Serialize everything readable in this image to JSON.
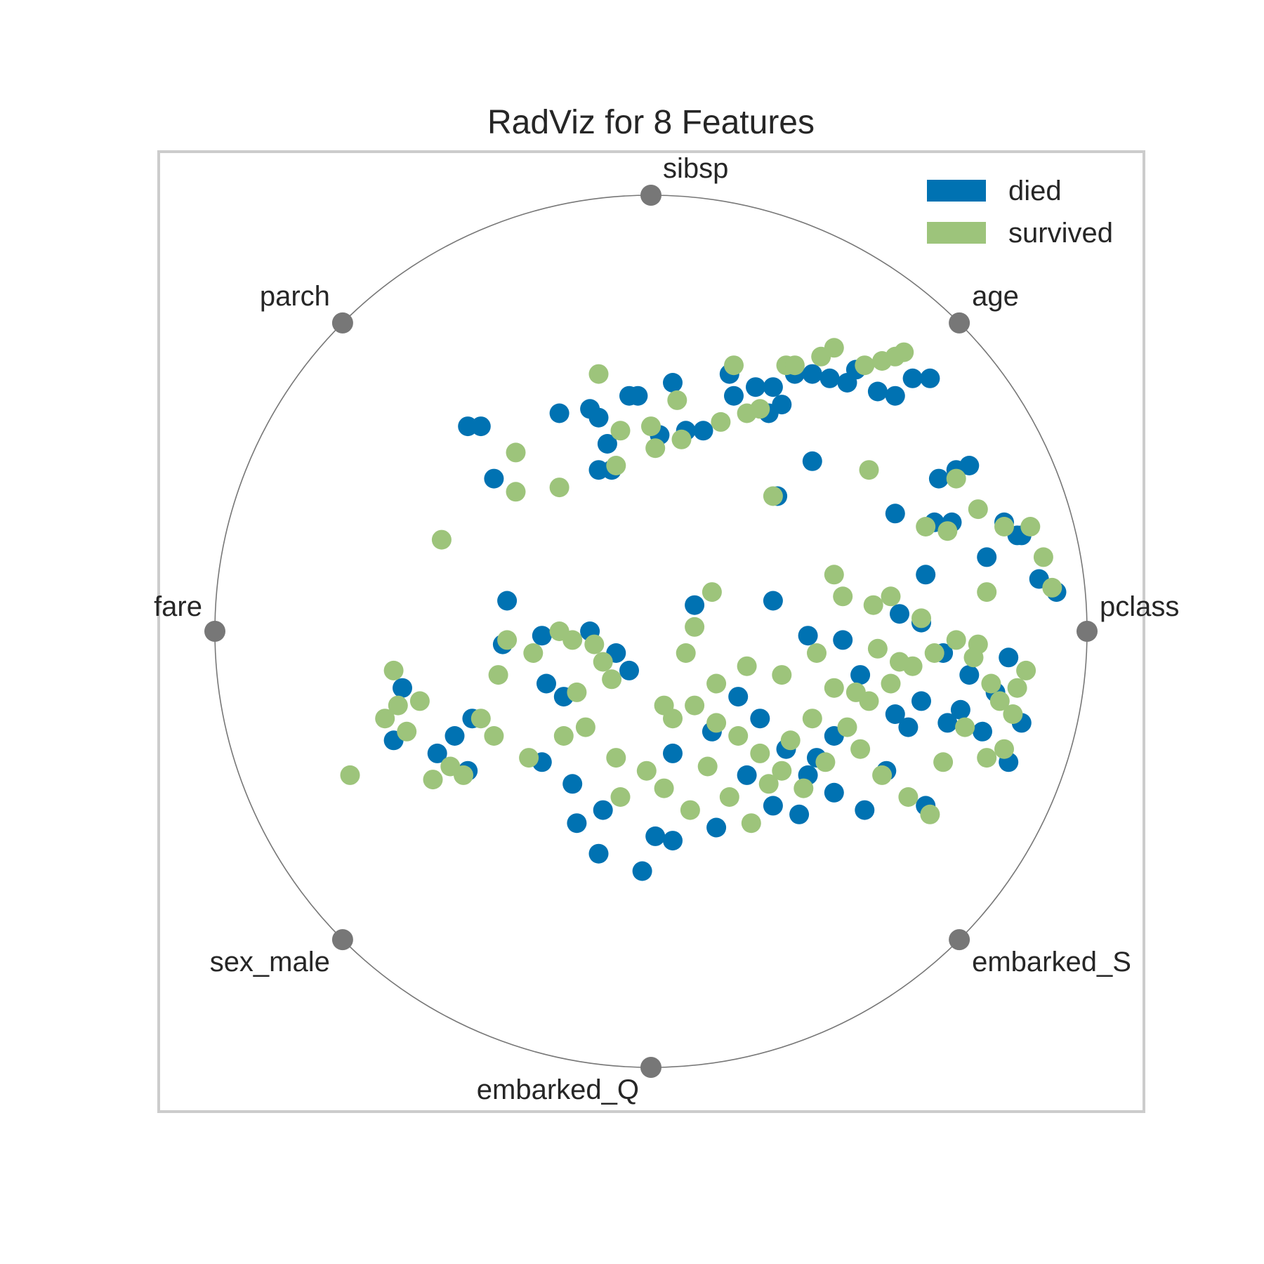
{
  "chart_data": {
    "type": "scatter",
    "title": "RadViz for 8 Features",
    "anchors": [
      "pclass",
      "age",
      "sibsp",
      "parch",
      "fare",
      "sex_male",
      "embarked_Q",
      "embarked_S"
    ],
    "legend": {
      "placement": "top-right",
      "entries": [
        "died",
        "survived"
      ]
    },
    "x_range": [
      -1,
      1
    ],
    "y_range": [
      -1,
      1
    ],
    "grid": false,
    "series": [
      {
        "name": "died",
        "color": "#0072B2",
        "points": [
          [
            -0.42,
            0.47
          ],
          [
            -0.39,
            0.47
          ],
          [
            -0.36,
            0.35
          ],
          [
            -0.21,
            0.5
          ],
          [
            -0.14,
            0.51
          ],
          [
            -0.12,
            0.49
          ],
          [
            -0.1,
            0.43
          ],
          [
            -0.12,
            0.37
          ],
          [
            -0.09,
            0.37
          ],
          [
            -0.05,
            0.54
          ],
          [
            -0.03,
            0.54
          ],
          [
            0.05,
            0.57
          ],
          [
            0.18,
            0.59
          ],
          [
            0.19,
            0.54
          ],
          [
            0.24,
            0.56
          ],
          [
            0.28,
            0.56
          ],
          [
            0.33,
            0.59
          ],
          [
            0.37,
            0.59
          ],
          [
            0.41,
            0.58
          ],
          [
            0.45,
            0.57
          ],
          [
            0.47,
            0.6
          ],
          [
            0.52,
            0.55
          ],
          [
            0.56,
            0.54
          ],
          [
            0.6,
            0.58
          ],
          [
            0.64,
            0.58
          ],
          [
            0.08,
            0.46
          ],
          [
            0.12,
            0.46
          ],
          [
            0.27,
            0.5
          ],
          [
            0.3,
            0.52
          ],
          [
            0.02,
            0.45
          ],
          [
            0.37,
            0.39
          ],
          [
            0.29,
            0.31
          ],
          [
            0.56,
            0.27
          ],
          [
            0.66,
            0.35
          ],
          [
            0.7,
            0.37
          ],
          [
            0.73,
            0.38
          ],
          [
            0.65,
            0.25
          ],
          [
            0.69,
            0.25
          ],
          [
            0.77,
            0.17
          ],
          [
            0.81,
            0.25
          ],
          [
            0.84,
            0.22
          ],
          [
            0.85,
            0.22
          ],
          [
            0.63,
            0.13
          ],
          [
            0.89,
            0.12
          ],
          [
            0.93,
            0.09
          ],
          [
            -0.33,
            0.07
          ],
          [
            -0.34,
            -0.03
          ],
          [
            -0.25,
            -0.01
          ],
          [
            -0.14,
            0.0
          ],
          [
            -0.08,
            -0.05
          ],
          [
            -0.05,
            -0.09
          ],
          [
            -0.2,
            -0.15
          ],
          [
            -0.24,
            -0.12
          ],
          [
            -0.41,
            -0.2
          ],
          [
            -0.45,
            -0.24
          ],
          [
            -0.49,
            -0.28
          ],
          [
            -0.57,
            -0.13
          ],
          [
            -0.59,
            -0.25
          ],
          [
            -0.42,
            -0.32
          ],
          [
            -0.25,
            -0.3
          ],
          [
            -0.18,
            -0.35
          ],
          [
            -0.11,
            -0.41
          ],
          [
            -0.17,
            -0.44
          ],
          [
            -0.12,
            -0.51
          ],
          [
            -0.02,
            -0.55
          ],
          [
            0.01,
            -0.47
          ],
          [
            0.05,
            -0.48
          ],
          [
            0.15,
            -0.45
          ],
          [
            0.28,
            -0.4
          ],
          [
            0.34,
            -0.42
          ],
          [
            0.38,
            -0.29
          ],
          [
            0.42,
            -0.24
          ],
          [
            0.54,
            -0.32
          ],
          [
            0.62,
            -0.16
          ],
          [
            0.67,
            -0.05
          ],
          [
            0.73,
            -0.1
          ],
          [
            0.79,
            -0.14
          ],
          [
            0.85,
            -0.21
          ],
          [
            0.82,
            -0.3
          ],
          [
            0.63,
            -0.4
          ],
          [
            0.49,
            -0.41
          ],
          [
            0.1,
            0.06
          ],
          [
            0.28,
            0.07
          ],
          [
            0.36,
            -0.01
          ],
          [
            0.44,
            -0.02
          ],
          [
            0.48,
            -0.1
          ],
          [
            0.57,
            0.04
          ],
          [
            0.62,
            0.02
          ],
          [
            0.2,
            -0.15
          ],
          [
            0.25,
            -0.2
          ],
          [
            0.05,
            -0.28
          ],
          [
            0.14,
            -0.23
          ],
          [
            0.22,
            -0.33
          ],
          [
            0.31,
            -0.27
          ],
          [
            0.36,
            -0.33
          ],
          [
            0.42,
            -0.37
          ],
          [
            0.56,
            -0.19
          ],
          [
            0.59,
            -0.22
          ],
          [
            0.68,
            -0.21
          ],
          [
            0.71,
            -0.18
          ],
          [
            0.76,
            -0.23
          ],
          [
            0.82,
            -0.06
          ]
        ]
      },
      {
        "name": "survived",
        "color": "#9DC47B",
        "points": [
          [
            -0.12,
            0.59
          ],
          [
            -0.07,
            0.46
          ],
          [
            0.0,
            0.47
          ],
          [
            0.06,
            0.53
          ],
          [
            0.19,
            0.61
          ],
          [
            0.31,
            0.61
          ],
          [
            0.33,
            0.61
          ],
          [
            0.39,
            0.63
          ],
          [
            0.42,
            0.65
          ],
          [
            0.49,
            0.61
          ],
          [
            0.53,
            0.62
          ],
          [
            0.56,
            0.63
          ],
          [
            0.58,
            0.64
          ],
          [
            -0.31,
            0.41
          ],
          [
            -0.31,
            0.32
          ],
          [
            -0.21,
            0.33
          ],
          [
            -0.08,
            0.38
          ],
          [
            0.01,
            0.42
          ],
          [
            0.07,
            0.44
          ],
          [
            0.16,
            0.48
          ],
          [
            0.22,
            0.5
          ],
          [
            0.25,
            0.51
          ],
          [
            -0.48,
            0.21
          ],
          [
            0.28,
            0.31
          ],
          [
            0.5,
            0.37
          ],
          [
            0.7,
            0.35
          ],
          [
            0.75,
            0.28
          ],
          [
            0.63,
            0.24
          ],
          [
            0.68,
            0.23
          ],
          [
            0.81,
            0.24
          ],
          [
            0.87,
            0.24
          ],
          [
            0.9,
            0.17
          ],
          [
            0.92,
            0.1
          ],
          [
            0.77,
            0.09
          ],
          [
            0.14,
            0.09
          ],
          [
            0.1,
            0.01
          ],
          [
            0.42,
            0.13
          ],
          [
            0.44,
            0.08
          ],
          [
            0.55,
            0.08
          ],
          [
            0.51,
            0.06
          ],
          [
            -0.59,
            -0.09
          ],
          [
            -0.58,
            -0.17
          ],
          [
            -0.56,
            -0.23
          ],
          [
            -0.53,
            -0.16
          ],
          [
            -0.46,
            -0.31
          ],
          [
            -0.5,
            -0.34
          ],
          [
            -0.43,
            -0.33
          ],
          [
            -0.39,
            -0.2
          ],
          [
            -0.36,
            -0.24
          ],
          [
            -0.28,
            -0.29
          ],
          [
            -0.2,
            -0.24
          ],
          [
            -0.15,
            -0.22
          ],
          [
            -0.35,
            -0.1
          ],
          [
            -0.27,
            -0.05
          ],
          [
            -0.21,
            0.0
          ],
          [
            -0.18,
            -0.02
          ],
          [
            -0.13,
            -0.03
          ],
          [
            -0.11,
            -0.07
          ],
          [
            -0.09,
            -0.11
          ],
          [
            -0.17,
            -0.14
          ],
          [
            -0.33,
            -0.02
          ],
          [
            -0.69,
            -0.33
          ],
          [
            -0.61,
            -0.2
          ],
          [
            -0.08,
            -0.29
          ],
          [
            -0.07,
            -0.38
          ],
          [
            0.05,
            -0.2
          ],
          [
            0.1,
            -0.17
          ],
          [
            0.15,
            -0.21
          ],
          [
            0.2,
            -0.24
          ],
          [
            0.25,
            -0.28
          ],
          [
            0.3,
            -0.32
          ],
          [
            0.35,
            -0.36
          ],
          [
            0.4,
            -0.3
          ],
          [
            0.45,
            -0.22
          ],
          [
            0.5,
            -0.16
          ],
          [
            0.55,
            -0.12
          ],
          [
            0.6,
            -0.08
          ],
          [
            0.65,
            -0.05
          ],
          [
            0.7,
            -0.02
          ],
          [
            0.74,
            -0.06
          ],
          [
            0.78,
            -0.12
          ],
          [
            0.8,
            -0.16
          ],
          [
            0.83,
            -0.19
          ],
          [
            0.86,
            -0.09
          ],
          [
            0.75,
            -0.03
          ],
          [
            0.62,
            0.03
          ],
          [
            0.57,
            -0.07
          ],
          [
            0.52,
            -0.04
          ],
          [
            0.47,
            -0.14
          ],
          [
            0.38,
            -0.05
          ],
          [
            0.3,
            -0.1
          ],
          [
            0.22,
            -0.08
          ],
          [
            0.15,
            -0.12
          ],
          [
            0.08,
            -0.05
          ],
          [
            0.03,
            -0.17
          ],
          [
            -0.01,
            -0.32
          ],
          [
            0.03,
            -0.36
          ],
          [
            0.09,
            -0.41
          ],
          [
            0.13,
            -0.31
          ],
          [
            0.18,
            -0.38
          ],
          [
            0.23,
            -0.44
          ],
          [
            0.27,
            -0.35
          ],
          [
            0.32,
            -0.25
          ],
          [
            0.37,
            -0.2
          ],
          [
            0.42,
            -0.13
          ],
          [
            0.48,
            -0.27
          ],
          [
            0.53,
            -0.33
          ],
          [
            0.59,
            -0.38
          ],
          [
            0.64,
            -0.42
          ],
          [
            0.67,
            -0.3
          ],
          [
            0.72,
            -0.22
          ],
          [
            0.77,
            -0.29
          ],
          [
            0.81,
            -0.27
          ],
          [
            0.84,
            -0.13
          ]
        ]
      }
    ]
  }
}
